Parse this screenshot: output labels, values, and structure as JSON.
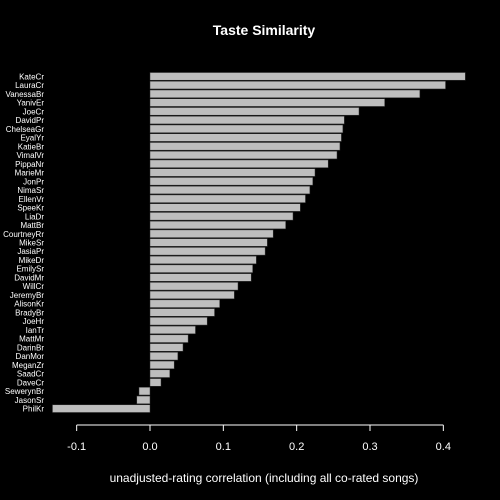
{
  "chart_data": {
    "type": "bar",
    "orientation": "horizontal",
    "title": "Taste Similarity",
    "xlabel": "unadjusted-rating correlation (including all co-rated songs)",
    "ylabel": "",
    "xlim": [
      -0.15,
      0.45
    ],
    "xticks": [
      -0.1,
      0.0,
      0.1,
      0.2,
      0.3,
      0.4
    ],
    "xtick_labels": [
      "-0.1",
      "0.0",
      "0.1",
      "0.2",
      "0.3",
      "0.4"
    ],
    "grid": false,
    "bar_color": "#bebebe",
    "background": "#000000",
    "categories": [
      "KateCr",
      "LauraCr",
      "VanessaBr",
      "YanivEr",
      "JoeCr",
      "DavidPr",
      "ChelseaGr",
      "EyalYr",
      "KatieBr",
      "VimalVr",
      "PippaNr",
      "MarieMr",
      "JonPr",
      "NimaSr",
      "EllenVr",
      "SpeeKr",
      "LiaDr",
      "MattBr",
      "CourtneyRr",
      "MikeSr",
      "JasiaPr",
      "MikeDr",
      "EmilySr",
      "DavidMr",
      "WillCr",
      "JeremyBr",
      "AlisonKr",
      "BradyBr",
      "JoeHr",
      "IanTr",
      "MattMr",
      "DarinBr",
      "DanMor",
      "MeganZr",
      "SaadCr",
      "DaveCr",
      "SewerynBr",
      "JasonSr",
      "PhilKr"
    ],
    "values": [
      0.43,
      0.403,
      0.368,
      0.32,
      0.285,
      0.265,
      0.263,
      0.261,
      0.259,
      0.255,
      0.243,
      0.225,
      0.222,
      0.218,
      0.212,
      0.205,
      0.195,
      0.185,
      0.168,
      0.16,
      0.157,
      0.145,
      0.14,
      0.138,
      0.12,
      0.115,
      0.095,
      0.088,
      0.078,
      0.062,
      0.052,
      0.045,
      0.038,
      0.033,
      0.027,
      0.015,
      -0.015,
      -0.018,
      -0.133
    ]
  }
}
